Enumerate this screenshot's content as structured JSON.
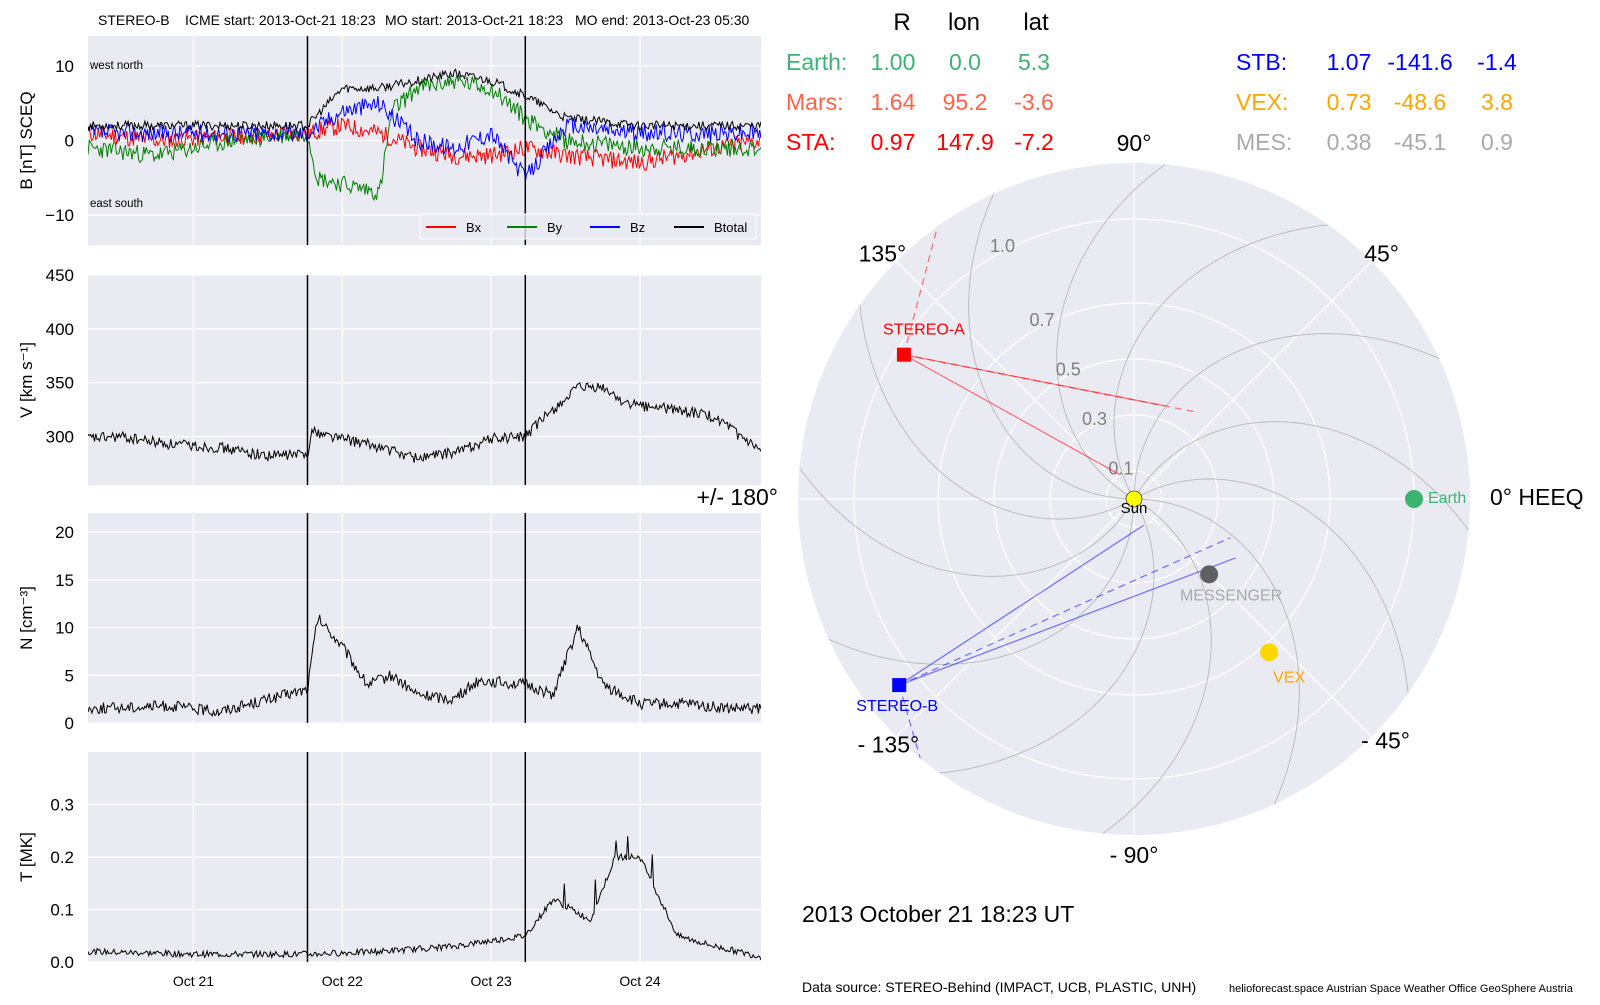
{
  "header": {
    "spacecraft": "STEREO-B",
    "icme_start": "ICME start: 2013-Oct-21 18:23",
    "mo_start": "MO start: 2013-Oct-21 18:23",
    "mo_end": "MO end: 2013-Oct-23 05:30"
  },
  "colors": {
    "panel_bg": "#EAEAF2",
    "grid": "#ffffff",
    "bx": "#ff0000",
    "by": "#008000",
    "bz": "#0000ff",
    "btotal": "#000000",
    "earth": "#3CB371",
    "mars": "#FF6347",
    "sta": "#ff0000",
    "stb": "#0000ff",
    "vex": "#FFA500",
    "mes": "#A9A9A9",
    "sun": "#FFFF00"
  },
  "positions_table": {
    "headers": [
      "R",
      "lon",
      "lat"
    ],
    "rows": [
      {
        "name": "Earth:",
        "r": "1.00",
        "lon": "0.0",
        "lat": "5.3",
        "color": "#3CB371"
      },
      {
        "name": "Mars:",
        "r": "1.64",
        "lon": "95.2",
        "lat": "-3.6",
        "color": "#FF6347"
      },
      {
        "name": "STA:",
        "r": "0.97",
        "lon": "147.9",
        "lat": "-7.2",
        "color": "#ff0000"
      },
      {
        "name": "STB:",
        "r": "1.07",
        "lon": "-141.6",
        "lat": "-1.4",
        "color": "#0000ff"
      },
      {
        "name": "VEX:",
        "r": "0.73",
        "lon": "-48.6",
        "lat": "3.8",
        "color": "#FFA500"
      },
      {
        "name": "MES:",
        "r": "0.38",
        "lon": "-45.1",
        "lat": "0.9",
        "color": "#A9A9A9"
      }
    ]
  },
  "timestamp": "2013 October 21  18:23 UT",
  "footer": {
    "data_source": "Data source: STEREO-Behind (IMPACT, UCB, PLASTIC, UNH)",
    "credits": "helioforecast.space   Austrian Space Weather Office   GeoSphere Austria"
  },
  "chart_data": [
    {
      "type": "line",
      "panel": "magnetic field",
      "ylabel": "B [nT] SCEQ",
      "ylim": [
        -14,
        14
      ],
      "yticks": [
        "10",
        "0",
        "−10"
      ],
      "ytick_values": [
        10,
        0,
        -10
      ],
      "annotations": {
        "top_left": "west    north",
        "bottom_left": "east    south"
      },
      "legend": [
        "Bx",
        "By",
        "Bz",
        "Btotal"
      ],
      "legend_placement": "lower-right",
      "x_range_days": [
        "2013-10-20 07:00",
        "2013-10-24 19:30"
      ],
      "event_lines": [
        "2013-10-21 18:23",
        "2013-10-23 05:30"
      ],
      "series": [
        {
          "name": "Bx",
          "color": "#ff0000",
          "x": [
            "2013-10-20 07:00",
            "2013-10-20 18:00",
            "2013-10-21 06:00",
            "2013-10-21 18:23",
            "2013-10-22 00:00",
            "2013-10-22 06:00",
            "2013-10-22 12:00",
            "2013-10-22 18:00",
            "2013-10-23 00:00",
            "2013-10-23 05:30",
            "2013-10-23 12:00",
            "2013-10-24 00:00",
            "2013-10-24 12:00",
            "2013-10-24 19:30"
          ],
          "values": [
            1,
            0,
            0.5,
            1,
            2,
            1,
            -1,
            -2,
            -2,
            -1,
            -2,
            -3,
            -1,
            0
          ]
        },
        {
          "name": "By",
          "color": "#008000",
          "x": [
            "2013-10-20 07:00",
            "2013-10-20 18:00",
            "2013-10-21 06:00",
            "2013-10-21 18:23",
            "2013-10-21 20:00",
            "2013-10-22 06:00",
            "2013-10-22 08:00",
            "2013-10-22 12:00",
            "2013-10-22 18:00",
            "2013-10-23 00:00",
            "2013-10-23 05:30",
            "2013-10-23 12:00",
            "2013-10-24 00:00",
            "2013-10-24 12:00",
            "2013-10-24 19:30"
          ],
          "values": [
            -1,
            -2,
            0,
            1,
            -5,
            -7,
            4,
            7,
            8,
            7,
            3,
            0,
            -1,
            -1,
            -1
          ]
        },
        {
          "name": "Bz",
          "color": "#0000ff",
          "x": [
            "2013-10-20 07:00",
            "2013-10-20 18:00",
            "2013-10-21 06:00",
            "2013-10-21 18:23",
            "2013-10-22 00:00",
            "2013-10-22 06:00",
            "2013-10-22 12:00",
            "2013-10-22 18:00",
            "2013-10-23 00:00",
            "2013-10-23 05:30",
            "2013-10-23 12:00",
            "2013-10-24 00:00",
            "2013-10-24 12:00",
            "2013-10-24 19:30"
          ],
          "values": [
            1,
            1,
            1,
            1,
            4,
            5,
            0,
            -1,
            1,
            -5,
            2,
            1,
            1,
            1
          ]
        },
        {
          "name": "Btotal",
          "color": "#000000",
          "x": [
            "2013-10-20 07:00",
            "2013-10-20 18:00",
            "2013-10-21 06:00",
            "2013-10-21 18:23",
            "2013-10-22 00:00",
            "2013-10-22 06:00",
            "2013-10-22 12:00",
            "2013-10-22 18:00",
            "2013-10-23 00:00",
            "2013-10-23 05:30",
            "2013-10-23 12:00",
            "2013-10-24 00:00",
            "2013-10-24 12:00",
            "2013-10-24 19:30"
          ],
          "values": [
            2,
            2,
            2,
            2,
            7,
            7,
            8,
            9,
            8,
            6,
            3,
            2,
            2,
            2
          ]
        }
      ]
    },
    {
      "type": "line",
      "panel": "speed",
      "ylabel": "V [km s⁻¹]",
      "ylim": [
        255,
        450
      ],
      "yticks": [
        "450",
        "400",
        "350",
        "300"
      ],
      "ytick_values": [
        450,
        400,
        350,
        300
      ],
      "series": [
        {
          "name": "V",
          "color": "#000000",
          "x": [
            "2013-10-20 07:00",
            "2013-10-20 12:00",
            "2013-10-20 20:00",
            "2013-10-21 04:00",
            "2013-10-21 12:00",
            "2013-10-21 18:23",
            "2013-10-21 19:00",
            "2013-10-22 06:00",
            "2013-10-22 12:00",
            "2013-10-22 18:00",
            "2013-10-23 00:00",
            "2013-10-23 05:30",
            "2013-10-23 09:00",
            "2013-10-23 14:00",
            "2013-10-23 18:00",
            "2013-10-23 22:00",
            "2013-10-24 06:00",
            "2013-10-24 12:00",
            "2013-10-24 19:30"
          ],
          "values": [
            298,
            300,
            293,
            290,
            282,
            284,
            305,
            290,
            280,
            285,
            298,
            300,
            320,
            345,
            345,
            330,
            325,
            318,
            285
          ]
        }
      ]
    },
    {
      "type": "line",
      "panel": "density",
      "ylabel": "N [cm⁻³]",
      "ylim": [
        0,
        22
      ],
      "yticks": [
        "20",
        "15",
        "10",
        "5",
        "0"
      ],
      "ytick_values": [
        20,
        15,
        10,
        5,
        0
      ],
      "series": [
        {
          "name": "N",
          "color": "#000000",
          "x": [
            "2013-10-20 07:00",
            "2013-10-20 20:00",
            "2013-10-21 04:00",
            "2013-10-21 12:00",
            "2013-10-21 18:23",
            "2013-10-21 20:00",
            "2013-10-22 00:00",
            "2013-10-22 04:00",
            "2013-10-22 08:00",
            "2013-10-22 12:00",
            "2013-10-22 18:00",
            "2013-10-22 22:00",
            "2013-10-23 05:30",
            "2013-10-23 10:00",
            "2013-10-23 14:00",
            "2013-10-23 18:00",
            "2013-10-24 00:00",
            "2013-10-24 08:00",
            "2013-10-24 14:00",
            "2013-10-24 19:30"
          ],
          "values": [
            1.5,
            1.8,
            1.2,
            2.5,
            3.5,
            11,
            8,
            4,
            5,
            3,
            2.5,
            4.5,
            4,
            3,
            10,
            4,
            2,
            2,
            1.5,
            1.5
          ]
        }
      ]
    },
    {
      "type": "line",
      "panel": "temperature",
      "ylabel": "T [MK]",
      "ylim": [
        0,
        0.4
      ],
      "yticks": [
        "0.3",
        "0.2",
        "0.1",
        "0.0"
      ],
      "ytick_values": [
        0.3,
        0.2,
        0.1,
        0.0
      ],
      "xticks": [
        "Oct 21",
        "Oct 22",
        "Oct 23",
        "Oct 24"
      ],
      "xtick_values": [
        "2013-10-21 00:00",
        "2013-10-22 00:00",
        "2013-10-23 00:00",
        "2013-10-24 00:00"
      ],
      "series": [
        {
          "name": "T",
          "color": "#000000",
          "x": [
            "2013-10-20 07:00",
            "2013-10-21 00:00",
            "2013-10-21 18:23",
            "2013-10-22 06:00",
            "2013-10-22 18:00",
            "2013-10-23 05:30",
            "2013-10-23 10:00",
            "2013-10-23 16:00",
            "2013-10-23 20:00",
            "2013-10-24 00:00",
            "2013-10-24 06:00",
            "2013-10-24 12:00",
            "2013-10-24 19:30"
          ],
          "values": [
            0.02,
            0.015,
            0.015,
            0.02,
            0.03,
            0.05,
            0.12,
            0.08,
            0.2,
            0.2,
            0.05,
            0.03,
            0.01
          ]
        }
      ]
    },
    {
      "type": "scatter",
      "panel": "polar position plot",
      "angle_labels": [
        "90°",
        "45°",
        "0° HEEQ",
        "- 45°",
        "- 90°",
        "- 135°",
        "+/- 180°",
        "135°"
      ],
      "angle_values": [
        90,
        45,
        0,
        -45,
        -90,
        -135,
        180,
        135
      ],
      "radial_labels": [
        "0.1",
        "0.3",
        "0.5",
        "0.7",
        "1.0"
      ],
      "radial_values": [
        0.1,
        0.3,
        0.5,
        0.7,
        1.0
      ],
      "r_max": 1.2,
      "bodies": [
        {
          "name": "Sun",
          "r": 0.0,
          "lon": 0,
          "color": "#FFFF00",
          "marker": "circle",
          "label_color": "#000000"
        },
        {
          "name": "Earth",
          "r": 1.0,
          "lon": 0.0,
          "color": "#3CB371",
          "marker": "circle",
          "label_color": "#3CB371"
        },
        {
          "name": "MESSENGER",
          "r": 0.38,
          "lon": -45.1,
          "color": "#606060",
          "marker": "circle",
          "label_color": "#A9A9A9"
        },
        {
          "name": "VEX",
          "r": 0.73,
          "lon": -48.6,
          "color": "#FFD700",
          "marker": "circle",
          "label_color": "#FFA500"
        },
        {
          "name": "STEREO-A",
          "r": 0.97,
          "lon": 147.9,
          "color": "#ff0000",
          "marker": "square",
          "label_color": "#ff0000"
        },
        {
          "name": "STEREO-B",
          "r": 1.07,
          "lon": -141.6,
          "color": "#0000ff",
          "marker": "square",
          "label_color": "#0000ff"
        }
      ]
    }
  ]
}
